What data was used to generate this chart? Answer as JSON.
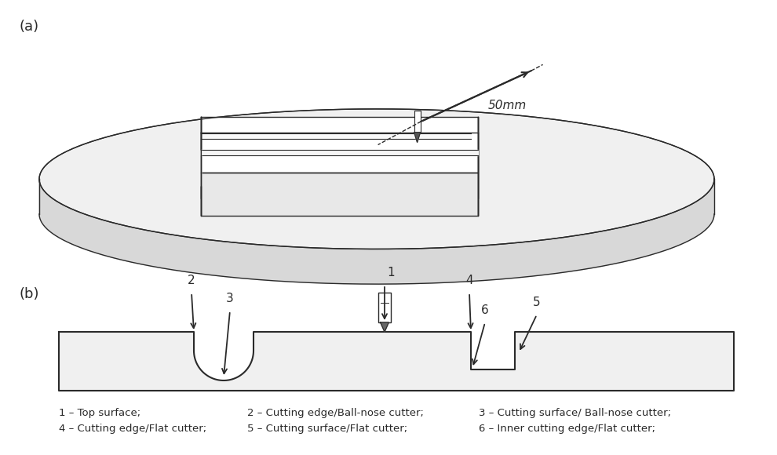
{
  "bg_color": "#ffffff",
  "line_color": "#2a2a2a",
  "light_gray": "#e8e8e8",
  "mid_gray": "#d0d0d0",
  "label_a": "(a)",
  "label_b": "(b)",
  "dim_label": "50mm",
  "legend_line1_col1": "1 – Top surface;",
  "legend_line1_col2": "2 – Cutting edge/Ball-nose cutter;",
  "legend_line1_col3": "3 – Cutting surface/ Ball-nose cutter;",
  "legend_line2_col1": "4 – Cutting edge/Flat cutter;",
  "legend_line2_col2": "5 – Cutting surface/Flat cutter;",
  "legend_line2_col3": "6 – Inner cutting edge/Flat cutter;"
}
